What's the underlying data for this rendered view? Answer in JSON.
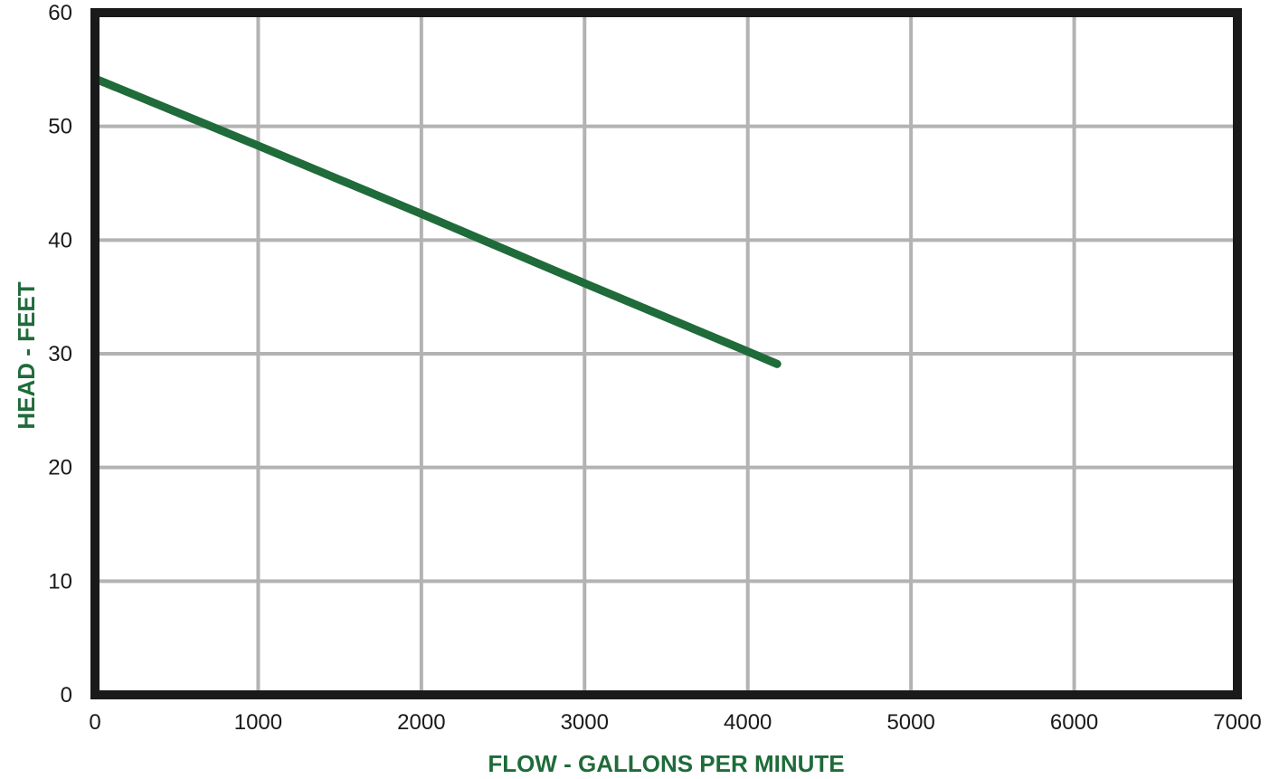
{
  "chart_data": {
    "type": "line",
    "title": "",
    "xlabel": "FLOW - GALLONS PER MINUTE",
    "ylabel": "HEAD - FEET",
    "xlim": [
      0,
      7000
    ],
    "ylim": [
      0,
      60
    ],
    "x_ticks": [
      "0",
      "1000",
      "2000",
      "3000",
      "4000",
      "5000",
      "6000",
      "7000"
    ],
    "y_ticks": [
      "0",
      "10",
      "20",
      "30",
      "40",
      "50",
      "60"
    ],
    "grid": true,
    "legend": "none",
    "series": [
      {
        "color": "#1f6b3a",
        "x": [
          0,
          1000,
          2000,
          3000,
          4000,
          4180
        ],
        "y": [
          54.2,
          48.3,
          42.3,
          36.2,
          30.2,
          29.1
        ]
      }
    ],
    "colors": {
      "line": "#1f6b3a",
      "frame": "#1a1a1a",
      "grid": "#b3b3b3",
      "axis_title": "#1f6b3a"
    }
  }
}
